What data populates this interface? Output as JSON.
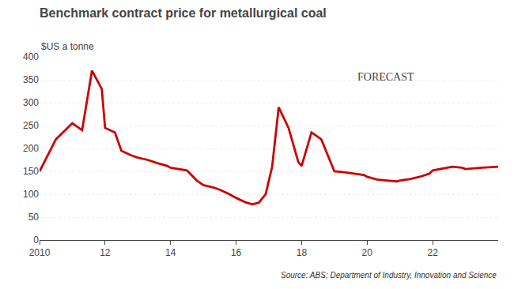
{
  "chart_data": {
    "type": "line",
    "title": "Benchmark contract price for metallurgical coal",
    "ylabel": "$US a tonne",
    "source": "Source: ABS; Department of Industry, Innovation and Science",
    "annotations": [
      "FORECAST"
    ],
    "color": "#cc0000",
    "grid": true,
    "xlim": [
      2010,
      2024
    ],
    "xticks": [
      2010,
      {
        "value": 2012,
        "label": "12"
      },
      {
        "value": 2014,
        "label": "14"
      },
      {
        "value": 2016,
        "label": "16"
      },
      {
        "value": 2018,
        "label": "18"
      },
      {
        "value": 2020,
        "label": "20"
      },
      {
        "value": 2022,
        "label": "22"
      }
    ],
    "ylim": [
      0,
      400
    ],
    "yticks": [
      0,
      50,
      100,
      150,
      200,
      250,
      300,
      350,
      400
    ],
    "x": [
      2010,
      2010.5,
      2011.0,
      2011.3,
      2011.6,
      2011.9,
      2012.0,
      2012.3,
      2012.5,
      2012.8,
      2013.0,
      2013.3,
      2013.6,
      2013.9,
      2014.0,
      2014.3,
      2014.5,
      2014.8,
      2015.0,
      2015.3,
      2015.5,
      2015.8,
      2016.0,
      2016.3,
      2016.5,
      2016.7,
      2016.9,
      2017.1,
      2017.3,
      2017.6,
      2017.9,
      2018.0,
      2018.3,
      2018.6,
      2019.0,
      2019.3,
      2019.6,
      2019.9,
      2020.0,
      2020.3,
      2020.6,
      2020.9,
      2021.0,
      2021.3,
      2021.6,
      2021.9,
      2022.0,
      2022.3,
      2022.6,
      2022.9,
      2023.0,
      2023.5,
      2024.0
    ],
    "values": [
      150,
      220,
      255,
      240,
      370,
      330,
      245,
      235,
      195,
      185,
      180,
      175,
      168,
      162,
      158,
      155,
      152,
      130,
      120,
      115,
      110,
      100,
      92,
      82,
      78,
      82,
      100,
      160,
      290,
      245,
      170,
      162,
      235,
      220,
      150,
      148,
      145,
      142,
      138,
      132,
      130,
      128,
      130,
      133,
      138,
      145,
      152,
      156,
      160,
      158,
      155,
      158,
      160
    ]
  }
}
